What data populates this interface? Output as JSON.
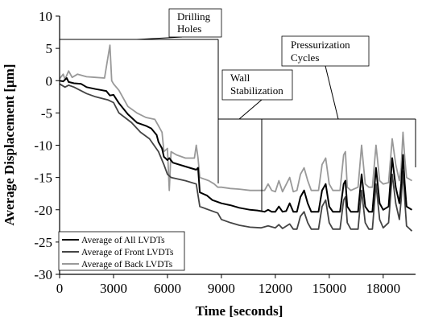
{
  "chart_data": {
    "type": "line",
    "xlabel": "Time [seconds]",
    "ylabel": "Average Displacement [μm]",
    "xlim": [
      0,
      19800
    ],
    "ylim": [
      -30,
      10
    ],
    "x_ticks": [
      "0",
      "3000",
      "6000",
      "9000",
      "12000",
      "15000",
      "18000"
    ],
    "y_ticks": [
      "10",
      "5",
      "0",
      "-5",
      "-10",
      "-15",
      "-20",
      "-25",
      "-30"
    ],
    "grid": "none",
    "legend_position": "bottom-left",
    "annotations": [
      {
        "lines": [
          "Drilling",
          "Holes"
        ]
      },
      {
        "lines": [
          "Wall",
          "Stabilization"
        ]
      },
      {
        "lines": [
          "Pressurization",
          "Cycles"
        ]
      }
    ],
    "series": [
      {
        "name": "Average of All LVDTs",
        "color": "#000000",
        "points": [
          [
            0,
            0
          ],
          [
            200,
            -0.1
          ],
          [
            400,
            0.4
          ],
          [
            500,
            -0.2
          ],
          [
            800,
            -0.4
          ],
          [
            1200,
            -0.5
          ],
          [
            1500,
            -1.0
          ],
          [
            2000,
            -1.3
          ],
          [
            2600,
            -1.6
          ],
          [
            2800,
            -2.3
          ],
          [
            3000,
            -2.2
          ],
          [
            3300,
            -3.5
          ],
          [
            3800,
            -5.2
          ],
          [
            4300,
            -6.5
          ],
          [
            4800,
            -7.0
          ],
          [
            5100,
            -7.4
          ],
          [
            5400,
            -8.4
          ],
          [
            5500,
            -9.5
          ],
          [
            5700,
            -10.5
          ],
          [
            5800,
            -11.8
          ],
          [
            6000,
            -12.3
          ],
          [
            6100,
            -12.0
          ],
          [
            6300,
            -12.7
          ],
          [
            7000,
            -13.3
          ],
          [
            7600,
            -13.8
          ],
          [
            7700,
            -13.5
          ],
          [
            7800,
            -17.3
          ],
          [
            8200,
            -17.8
          ],
          [
            8500,
            -18.5
          ],
          [
            8800,
            -18.8
          ],
          [
            9000,
            -19.0
          ],
          [
            9500,
            -19.3
          ],
          [
            10000,
            -19.7
          ],
          [
            10600,
            -20.0
          ],
          [
            11000,
            -20.1
          ],
          [
            11400,
            -20.3
          ],
          [
            11600,
            -20.0
          ],
          [
            11800,
            -20.3
          ],
          [
            12000,
            -20.3
          ],
          [
            12200,
            -19.5
          ],
          [
            12400,
            -20.3
          ],
          [
            12600,
            -20.2
          ],
          [
            12800,
            -19.0
          ],
          [
            13000,
            -20.3
          ],
          [
            13200,
            -20.3
          ],
          [
            13400,
            -18.0
          ],
          [
            13600,
            -17.0
          ],
          [
            13800,
            -19.0
          ],
          [
            14000,
            -20.3
          ],
          [
            14400,
            -20.3
          ],
          [
            14600,
            -17.0
          ],
          [
            14800,
            -16.0
          ],
          [
            15000,
            -19.5
          ],
          [
            15200,
            -20.3
          ],
          [
            15600,
            -20.3
          ],
          [
            15800,
            -16.0
          ],
          [
            15900,
            -15.5
          ],
          [
            16000,
            -19.5
          ],
          [
            16200,
            -20.3
          ],
          [
            16600,
            -20.3
          ],
          [
            16800,
            -14.5
          ],
          [
            17000,
            -19.5
          ],
          [
            17200,
            -20.3
          ],
          [
            17400,
            -20.3
          ],
          [
            17600,
            -13.5
          ],
          [
            17800,
            -19.0
          ],
          [
            18000,
            -20.0
          ],
          [
            18300,
            -19.5
          ],
          [
            18500,
            -12.0
          ],
          [
            18700,
            -16.5
          ],
          [
            18900,
            -19.0
          ],
          [
            19000,
            -16.0
          ],
          [
            19100,
            -11.5
          ],
          [
            19200,
            -16.0
          ],
          [
            19300,
            -19.5
          ],
          [
            19600,
            -20.0
          ]
        ]
      },
      {
        "name": "Average of Front LVDTs",
        "color": "#444444",
        "points": [
          [
            0,
            -0.5
          ],
          [
            300,
            -1.0
          ],
          [
            500,
            -0.7
          ],
          [
            800,
            -1.0
          ],
          [
            1500,
            -2.0
          ],
          [
            2000,
            -2.5
          ],
          [
            2700,
            -3.0
          ],
          [
            3000,
            -3.4
          ],
          [
            3300,
            -5.0
          ],
          [
            4000,
            -6.5
          ],
          [
            4500,
            -8.0
          ],
          [
            5000,
            -9.0
          ],
          [
            5500,
            -11.0
          ],
          [
            5800,
            -13.0
          ],
          [
            6000,
            -14.5
          ],
          [
            6200,
            -15.0
          ],
          [
            7000,
            -15.5
          ],
          [
            7600,
            -16.0
          ],
          [
            7800,
            -19.5
          ],
          [
            8300,
            -20.0
          ],
          [
            8800,
            -20.5
          ],
          [
            9000,
            -21.5
          ],
          [
            9500,
            -22.0
          ],
          [
            10000,
            -22.4
          ],
          [
            10600,
            -22.7
          ],
          [
            11200,
            -22.8
          ],
          [
            11600,
            -22.5
          ],
          [
            12000,
            -22.8
          ],
          [
            12200,
            -22.3
          ],
          [
            12400,
            -22.9
          ],
          [
            12800,
            -22.2
          ],
          [
            13000,
            -23.0
          ],
          [
            13200,
            -23.0
          ],
          [
            13400,
            -21.0
          ],
          [
            13600,
            -20.3
          ],
          [
            13800,
            -22.0
          ],
          [
            14000,
            -23.0
          ],
          [
            14400,
            -23.0
          ],
          [
            14600,
            -19.5
          ],
          [
            14800,
            -18.5
          ],
          [
            15000,
            -22.0
          ],
          [
            15200,
            -23.0
          ],
          [
            15600,
            -23.0
          ],
          [
            15800,
            -18.5
          ],
          [
            15900,
            -18.0
          ],
          [
            16000,
            -22.0
          ],
          [
            16200,
            -23.0
          ],
          [
            16600,
            -23.0
          ],
          [
            16800,
            -17.0
          ],
          [
            17000,
            -22.0
          ],
          [
            17200,
            -23.0
          ],
          [
            17400,
            -23.0
          ],
          [
            17600,
            -16.0
          ],
          [
            17800,
            -21.5
          ],
          [
            18000,
            -22.8
          ],
          [
            18300,
            -22.0
          ],
          [
            18500,
            -14.5
          ],
          [
            18700,
            -19.0
          ],
          [
            18900,
            -21.5
          ],
          [
            19000,
            -18.5
          ],
          [
            19100,
            -14.0
          ],
          [
            19200,
            -18.5
          ],
          [
            19300,
            -22.5
          ],
          [
            19600,
            -23.3
          ]
        ]
      },
      {
        "name": "Average of Back LVDTs",
        "color": "#999999",
        "points": [
          [
            0,
            0.3
          ],
          [
            200,
            1.0
          ],
          [
            300,
            0.2
          ],
          [
            500,
            1.5
          ],
          [
            700,
            0.5
          ],
          [
            1000,
            1.0
          ],
          [
            1500,
            0.6
          ],
          [
            2000,
            0.5
          ],
          [
            2500,
            0.4
          ],
          [
            2800,
            5.5
          ],
          [
            2900,
            0
          ],
          [
            3000,
            -0.5
          ],
          [
            3300,
            -1.5
          ],
          [
            3800,
            -4.0
          ],
          [
            4300,
            -5.0
          ],
          [
            4800,
            -5.7
          ],
          [
            5300,
            -6.0
          ],
          [
            5500,
            -7.0
          ],
          [
            5700,
            -8.0
          ],
          [
            5800,
            -11.0
          ],
          [
            6000,
            -10.5
          ],
          [
            6100,
            -17.0
          ],
          [
            6200,
            -11.0
          ],
          [
            6500,
            -11.5
          ],
          [
            7000,
            -12.0
          ],
          [
            7500,
            -12.0
          ],
          [
            7600,
            -10.0
          ],
          [
            7700,
            -12.0
          ],
          [
            7800,
            -15.0
          ],
          [
            8300,
            -15.5
          ],
          [
            8600,
            -16.0
          ],
          [
            8800,
            -16.5
          ],
          [
            9000,
            -16.5
          ],
          [
            9500,
            -16.7
          ],
          [
            10000,
            -16.8
          ],
          [
            10600,
            -17.0
          ],
          [
            11000,
            -17.0
          ],
          [
            11400,
            -17.0
          ],
          [
            11600,
            -16.0
          ],
          [
            11800,
            -17.0
          ],
          [
            12000,
            -17.2
          ],
          [
            12200,
            -15.5
          ],
          [
            12400,
            -17.2
          ],
          [
            12800,
            -15.0
          ],
          [
            13000,
            -17.2
          ],
          [
            13200,
            -17.0
          ],
          [
            13400,
            -14.5
          ],
          [
            13600,
            -13.5
          ],
          [
            13800,
            -15.5
          ],
          [
            14000,
            -17.0
          ],
          [
            14400,
            -17.0
          ],
          [
            14600,
            -13.0
          ],
          [
            14800,
            -12.0
          ],
          [
            15000,
            -16.0
          ],
          [
            15200,
            -17.0
          ],
          [
            15600,
            -17.0
          ],
          [
            15800,
            -11.5
          ],
          [
            15900,
            -11.0
          ],
          [
            16000,
            -16.5
          ],
          [
            16200,
            -17.0
          ],
          [
            16600,
            -16.5
          ],
          [
            16800,
            -10.0
          ],
          [
            17000,
            -16.0
          ],
          [
            17200,
            -16.5
          ],
          [
            17400,
            -16.5
          ],
          [
            17600,
            -10.0
          ],
          [
            17800,
            -15.5
          ],
          [
            18000,
            -16.0
          ],
          [
            18300,
            -15.8
          ],
          [
            18500,
            -9.0
          ],
          [
            18700,
            -13.0
          ],
          [
            18900,
            -15.5
          ],
          [
            19000,
            -13.5
          ],
          [
            19100,
            -8.0
          ],
          [
            19200,
            -12.0
          ],
          [
            19300,
            -15.0
          ],
          [
            19600,
            -15.5
          ]
        ]
      }
    ]
  }
}
